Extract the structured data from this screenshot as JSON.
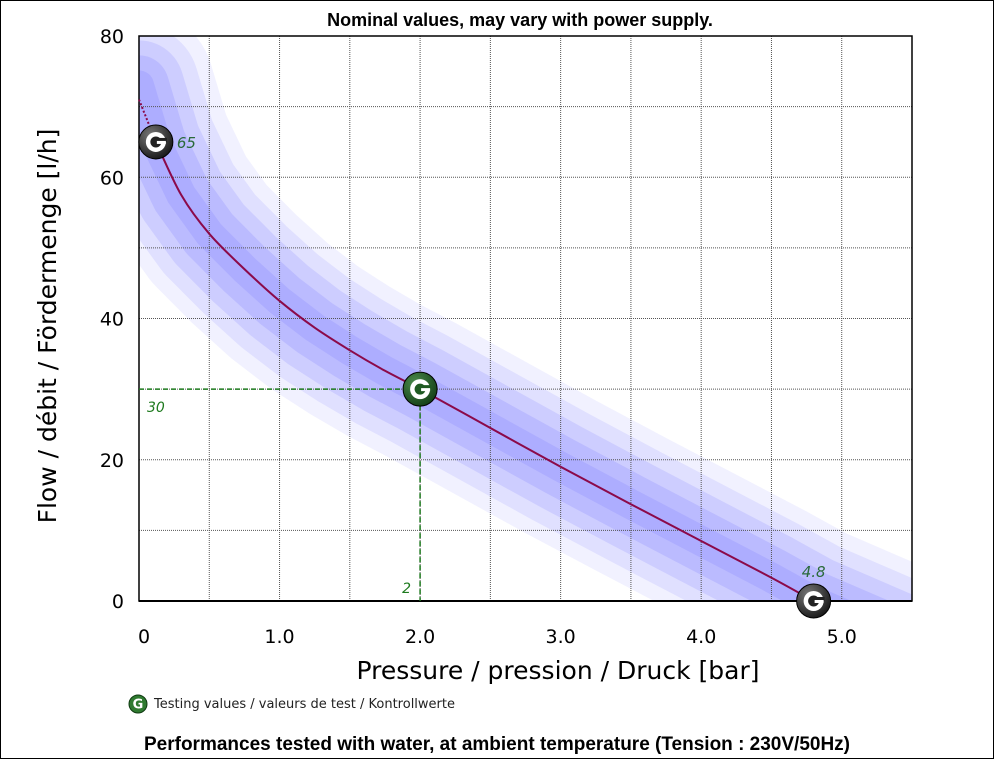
{
  "chart_data": {
    "type": "line",
    "title": "Nominal values, may vary with power supply.",
    "xlabel": "Pressure / pression / Druck [bar]",
    "ylabel": "Flow / débit / Fördermenge [l/h]",
    "footer": "Performances tested with water, at ambient temperature (Tension : 230V/50Hz)",
    "legend_label": "Testing values / valeurs de test / Kontrollwerte",
    "xlim": [
      0,
      5.5
    ],
    "ylim": [
      0,
      80
    ],
    "x_ticks": [
      "0",
      "1.0",
      "2.0",
      "3.0",
      "4.0",
      "5.0"
    ],
    "x_tick_values": [
      0,
      1,
      2,
      3,
      4,
      5
    ],
    "y_ticks": [
      "0",
      "20",
      "40",
      "60",
      "80"
    ],
    "y_tick_values": [
      0,
      20,
      40,
      60,
      80
    ],
    "grid": true,
    "curve": {
      "x": [
        0.12,
        0.3,
        0.5,
        0.75,
        1.0,
        1.25,
        1.5,
        1.75,
        2.0,
        2.5,
        3.0,
        3.5,
        4.0,
        4.5,
        4.8
      ],
      "y": [
        65,
        57.5,
        52,
        47,
        42.5,
        38.7,
        35.5,
        32.6,
        30,
        24.5,
        19,
        13.7,
        8.5,
        3.3,
        0
      ]
    },
    "extrapolation": {
      "x": [
        0,
        0.12
      ],
      "y": [
        71,
        65
      ]
    },
    "test_points": [
      {
        "x": 0.12,
        "y": 65,
        "label": "65",
        "style": "dark"
      },
      {
        "x": 2.0,
        "y": 30,
        "label": "",
        "style": "green"
      },
      {
        "x": 4.8,
        "y": 0,
        "label": "4.8",
        "style": "dark"
      }
    ],
    "reference": {
      "x": 2,
      "y": 30,
      "x_label": "2",
      "y_label": "30"
    },
    "colors": {
      "curve": "#8b0a4a",
      "band": "#7a7aff",
      "reference": "#1e7a1e",
      "marker_green": "#1f5a22",
      "marker_dark": "#1a1a1a"
    }
  }
}
